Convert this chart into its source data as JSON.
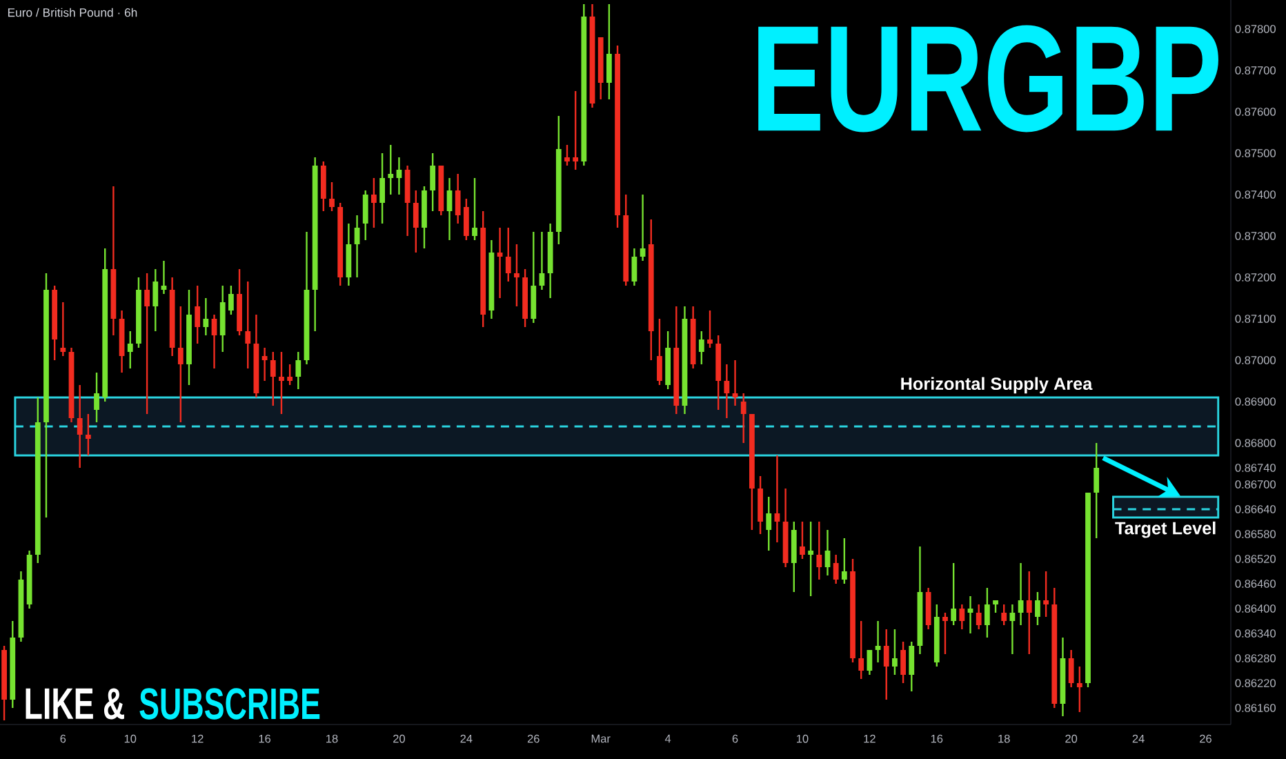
{
  "chart_data": {
    "type": "candlestick",
    "title": "EURGBP",
    "subtitle": "Euro / British Pound · 6h",
    "annotations": [
      "LIKE &",
      "SUBSCRIBE"
    ],
    "categories": [
      null,
      null,
      null,
      null,
      null,
      null,
      null,
      "6",
      null,
      null,
      null,
      null,
      null,
      null,
      null,
      "10",
      null,
      null,
      null,
      null,
      null,
      null,
      null,
      "12",
      null,
      null,
      null,
      null,
      null,
      null,
      null,
      "16",
      null,
      null,
      null,
      null,
      null,
      null,
      null,
      "18",
      null,
      null,
      null,
      null,
      null,
      null,
      null,
      "20",
      null,
      null,
      null,
      null,
      null,
      null,
      null,
      "24",
      null,
      null,
      null,
      null,
      null,
      null,
      null,
      "26",
      null,
      null,
      null,
      null,
      null,
      null,
      null,
      "Mar",
      null,
      null,
      null,
      null,
      null,
      null,
      null,
      "4",
      null,
      null,
      null,
      null,
      null,
      null,
      null,
      "6",
      null,
      null,
      null,
      null,
      null,
      null,
      null,
      "10",
      null,
      null,
      null,
      null,
      null,
      null,
      null,
      "12",
      null,
      null,
      null,
      null,
      null,
      null,
      null,
      "16",
      null,
      null,
      null,
      null,
      null,
      null,
      null,
      "18",
      null,
      null,
      null,
      null,
      null,
      null,
      null,
      "20",
      null,
      null,
      null,
      null,
      null,
      null,
      null,
      "24",
      null,
      null,
      null,
      null,
      null,
      null,
      null,
      "26",
      null,
      null,
      null
    ],
    "ohlc": [
      [
        0.863,
        0.8631,
        0.8613,
        0.8618
      ],
      [
        0.8618,
        0.8637,
        0.8616,
        0.8633
      ],
      [
        0.8633,
        0.8649,
        0.8632,
        0.8647
      ],
      [
        0.8641,
        0.8654,
        0.864,
        0.8653
      ],
      [
        0.8653,
        0.8691,
        0.8651,
        0.8685
      ],
      [
        0.8685,
        0.8721,
        0.8662,
        0.8717
      ],
      [
        0.8717,
        0.8718,
        0.87,
        0.8705
      ],
      [
        0.8703,
        0.8714,
        0.8701,
        0.8702
      ],
      [
        0.8702,
        0.8703,
        0.8685,
        0.8686
      ],
      [
        0.8686,
        0.8694,
        0.8674,
        0.8682
      ],
      [
        0.8682,
        0.8687,
        0.8677,
        0.8681
      ],
      [
        0.8688,
        0.8697,
        0.8685,
        0.8692
      ],
      [
        0.8691,
        0.8727,
        0.869,
        0.8722
      ],
      [
        0.8722,
        0.8742,
        0.8706,
        0.871
      ],
      [
        0.871,
        0.8712,
        0.8697,
        0.8701
      ],
      [
        0.8702,
        0.8707,
        0.8698,
        0.8704
      ],
      [
        0.8704,
        0.872,
        0.8703,
        0.8717
      ],
      [
        0.8717,
        0.8721,
        0.8687,
        0.8713
      ],
      [
        0.8713,
        0.8722,
        0.8707,
        0.8719
      ],
      [
        0.8717,
        0.8724,
        0.8716,
        0.8718
      ],
      [
        0.8717,
        0.872,
        0.8701,
        0.8703
      ],
      [
        0.8703,
        0.8713,
        0.8685,
        0.8699
      ],
      [
        0.8699,
        0.8717,
        0.8694,
        0.8711
      ],
      [
        0.8713,
        0.8718,
        0.8704,
        0.8708
      ],
      [
        0.8708,
        0.8715,
        0.8706,
        0.871
      ],
      [
        0.871,
        0.8711,
        0.8698,
        0.8706
      ],
      [
        0.8706,
        0.8718,
        0.8702,
        0.8714
      ],
      [
        0.8712,
        0.8718,
        0.8711,
        0.8716
      ],
      [
        0.8716,
        0.8722,
        0.8706,
        0.8707
      ],
      [
        0.8707,
        0.8719,
        0.8698,
        0.8704
      ],
      [
        0.8704,
        0.8711,
        0.8691,
        0.8692
      ],
      [
        0.8701,
        0.8703,
        0.8695,
        0.87
      ],
      [
        0.87,
        0.8702,
        0.8689,
        0.8696
      ],
      [
        0.8696,
        0.8702,
        0.8687,
        0.8695
      ],
      [
        0.8696,
        0.8699,
        0.8694,
        0.8695
      ],
      [
        0.8696,
        0.8702,
        0.8693,
        0.87
      ],
      [
        0.87,
        0.8731,
        0.8699,
        0.8717
      ],
      [
        0.8717,
        0.8749,
        0.8707,
        0.8747
      ],
      [
        0.8747,
        0.8748,
        0.8736,
        0.8739
      ],
      [
        0.8739,
        0.8743,
        0.8736,
        0.8737
      ],
      [
        0.8737,
        0.8738,
        0.8718,
        0.872
      ],
      [
        0.872,
        0.8733,
        0.8718,
        0.8728
      ],
      [
        0.8728,
        0.8735,
        0.872,
        0.8732
      ],
      [
        0.8733,
        0.8741,
        0.8729,
        0.874
      ],
      [
        0.874,
        0.8744,
        0.8732,
        0.8738
      ],
      [
        0.8738,
        0.875,
        0.8733,
        0.8744
      ],
      [
        0.8744,
        0.8752,
        0.874,
        0.8745
      ],
      [
        0.8744,
        0.8749,
        0.874,
        0.8746
      ],
      [
        0.8746,
        0.8747,
        0.873,
        0.8738
      ],
      [
        0.8738,
        0.8741,
        0.8726,
        0.8732
      ],
      [
        0.8732,
        0.8742,
        0.8727,
        0.8741
      ],
      [
        0.8741,
        0.875,
        0.8736,
        0.8747
      ],
      [
        0.8747,
        0.8747,
        0.8735,
        0.8736
      ],
      [
        0.8736,
        0.8744,
        0.8729,
        0.8741
      ],
      [
        0.8741,
        0.8745,
        0.8733,
        0.8735
      ],
      [
        0.8737,
        0.8739,
        0.8729,
        0.873
      ],
      [
        0.873,
        0.8744,
        0.8729,
        0.8732
      ],
      [
        0.8732,
        0.8736,
        0.8708,
        0.8711
      ],
      [
        0.8712,
        0.8729,
        0.871,
        0.8726
      ],
      [
        0.8726,
        0.8732,
        0.8715,
        0.8725
      ],
      [
        0.8725,
        0.8732,
        0.8719,
        0.8721
      ],
      [
        0.8721,
        0.8728,
        0.8713,
        0.872
      ],
      [
        0.872,
        0.8722,
        0.8708,
        0.871
      ],
      [
        0.871,
        0.8731,
        0.8709,
        0.8718
      ],
      [
        0.8718,
        0.8731,
        0.8717,
        0.8721
      ],
      [
        0.8721,
        0.8733,
        0.8715,
        0.8731
      ],
      [
        0.8731,
        0.8759,
        0.8728,
        0.8751
      ],
      [
        0.8749,
        0.8752,
        0.8747,
        0.8748
      ],
      [
        0.8749,
        0.8765,
        0.8746,
        0.8748
      ],
      [
        0.8748,
        0.8786,
        0.8747,
        0.8783
      ],
      [
        0.8783,
        0.8786,
        0.8761,
        0.8762
      ],
      [
        0.8778,
        0.8778,
        0.8763,
        0.8767
      ],
      [
        0.8767,
        0.8786,
        0.8763,
        0.8774
      ],
      [
        0.8774,
        0.8776,
        0.8732,
        0.8735
      ],
      [
        0.8735,
        0.874,
        0.8718,
        0.8719
      ],
      [
        0.8719,
        0.8727,
        0.8718,
        0.8725
      ],
      [
        0.8725,
        0.874,
        0.8724,
        0.8727
      ],
      [
        0.8728,
        0.8734,
        0.87,
        0.8707
      ],
      [
        0.8701,
        0.871,
        0.8694,
        0.8695
      ],
      [
        0.8694,
        0.8707,
        0.8693,
        0.8703
      ],
      [
        0.8703,
        0.8713,
        0.8687,
        0.8689
      ],
      [
        0.8689,
        0.8713,
        0.8687,
        0.871
      ],
      [
        0.871,
        0.8713,
        0.8698,
        0.8699
      ],
      [
        0.8702,
        0.8707,
        0.8699,
        0.8705
      ],
      [
        0.8705,
        0.8712,
        0.8703,
        0.8704
      ],
      [
        0.8704,
        0.8706,
        0.8688,
        0.8695
      ],
      [
        0.8695,
        0.8699,
        0.8686,
        0.8692
      ],
      [
        0.8692,
        0.87,
        0.8689,
        0.8691
      ],
      [
        0.869,
        0.8692,
        0.868,
        0.8687
      ],
      [
        0.8687,
        0.8687,
        0.8659,
        0.8669
      ],
      [
        0.8669,
        0.8672,
        0.8658,
        0.8661
      ],
      [
        0.8659,
        0.8667,
        0.8654,
        0.8663
      ],
      [
        0.8663,
        0.8677,
        0.8656,
        0.8661
      ],
      [
        0.8661,
        0.8669,
        0.865,
        0.8651
      ],
      [
        0.8651,
        0.8661,
        0.8644,
        0.8659
      ],
      [
        0.8655,
        0.8661,
        0.8652,
        0.8653
      ],
      [
        0.8653,
        0.8661,
        0.8643,
        0.8654
      ],
      [
        0.8653,
        0.8661,
        0.8647,
        0.865
      ],
      [
        0.865,
        0.8659,
        0.8648,
        0.8654
      ],
      [
        0.8651,
        0.8653,
        0.8646,
        0.8647
      ],
      [
        0.8647,
        0.8657,
        0.8646,
        0.8649
      ],
      [
        0.8649,
        0.8652,
        0.8627,
        0.8628
      ],
      [
        0.8628,
        0.8637,
        0.8623,
        0.8625
      ],
      [
        0.8625,
        0.863,
        0.8624,
        0.863
      ],
      [
        0.863,
        0.8637,
        0.8627,
        0.8631
      ],
      [
        0.8631,
        0.8635,
        0.8618,
        0.8626
      ],
      [
        0.8626,
        0.8635,
        0.8624,
        0.8628
      ],
      [
        0.863,
        0.8632,
        0.8622,
        0.8624
      ],
      [
        0.8624,
        0.8632,
        0.862,
        0.8631
      ],
      [
        0.8631,
        0.8655,
        0.8629,
        0.8644
      ],
      [
        0.8644,
        0.8645,
        0.8635,
        0.8636
      ],
      [
        0.8627,
        0.8641,
        0.8626,
        0.8638
      ],
      [
        0.8638,
        0.8639,
        0.8629,
        0.8637
      ],
      [
        0.8637,
        0.8651,
        0.8636,
        0.864
      ],
      [
        0.864,
        0.8641,
        0.8635,
        0.8637
      ],
      [
        0.8639,
        0.8643,
        0.8634,
        0.864
      ],
      [
        0.8639,
        0.8641,
        0.8635,
        0.8636
      ],
      [
        0.8636,
        0.8645,
        0.8633,
        0.8641
      ],
      [
        0.8641,
        0.8642,
        0.8639,
        0.8642
      ],
      [
        0.8639,
        0.8641,
        0.8636,
        0.8637
      ],
      [
        0.8637,
        0.8641,
        0.8629,
        0.8639
      ],
      [
        0.8639,
        0.8651,
        0.8636,
        0.8642
      ],
      [
        0.8642,
        0.8649,
        0.8629,
        0.8639
      ],
      [
        0.8638,
        0.8644,
        0.8636,
        0.8642
      ],
      [
        0.8642,
        0.8649,
        0.8638,
        0.8641
      ],
      [
        0.8641,
        0.8645,
        0.8616,
        0.8617
      ],
      [
        0.8617,
        0.8633,
        0.8614,
        0.8628
      ],
      [
        0.8628,
        0.863,
        0.8621,
        0.8622
      ],
      [
        0.8622,
        0.8626,
        0.8615,
        0.8621
      ],
      [
        0.8622,
        0.8668,
        0.8621,
        0.8668
      ],
      [
        0.8668,
        0.868,
        0.8657,
        0.8674
      ],
      null,
      null,
      null,
      null,
      null,
      null,
      null,
      null,
      null,
      null,
      null,
      null,
      null,
      null,
      null,
      null
    ],
    "ylim": [
      0.8612,
      0.8787
    ],
    "yticks": [
      {
        "value": 0.878,
        "label": "0.87800"
      },
      {
        "value": 0.877,
        "label": "0.87700"
      },
      {
        "value": 0.876,
        "label": "0.87600"
      },
      {
        "value": 0.875,
        "label": "0.87500"
      },
      {
        "value": 0.874,
        "label": "0.87400"
      },
      {
        "value": 0.873,
        "label": "0.87300"
      },
      {
        "value": 0.872,
        "label": "0.87200"
      },
      {
        "value": 0.871,
        "label": "0.87100"
      },
      {
        "value": 0.87,
        "label": "0.87000"
      },
      {
        "value": 0.869,
        "label": "0.86900"
      },
      {
        "value": 0.868,
        "label": "0.86800"
      },
      {
        "value": 0.8674,
        "label": "0.86740"
      },
      {
        "value": 0.867,
        "label": "0.86700"
      },
      {
        "value": 0.8664,
        "label": "0.86640"
      },
      {
        "value": 0.8658,
        "label": "0.86580"
      },
      {
        "value": 0.8652,
        "label": "0.86520"
      },
      {
        "value": 0.8646,
        "label": "0.86460"
      },
      {
        "value": 0.864,
        "label": "0.86400"
      },
      {
        "value": 0.8634,
        "label": "0.86340"
      },
      {
        "value": 0.8628,
        "label": "0.86280"
      },
      {
        "value": 0.8622,
        "label": "0.86220"
      },
      {
        "value": 0.8616,
        "label": "0.86160"
      }
    ],
    "bands": [
      {
        "axis": "y",
        "from": 0.8677,
        "to": 0.8691,
        "label": "Horizontal Supply Area",
        "color": "#2ad4e0"
      },
      {
        "axis": "y",
        "from": 0.8662,
        "to": 0.8667,
        "label": "Target Level",
        "color": "#2ad4e0"
      }
    ],
    "ref_lines": [
      {
        "axis": "y",
        "value": 0.8684,
        "color": "#2ad4e0",
        "line_style": "dashed"
      },
      {
        "axis": "y",
        "value": 0.8664,
        "color": "#2ad4e0",
        "line_style": "dashed"
      }
    ]
  }
}
